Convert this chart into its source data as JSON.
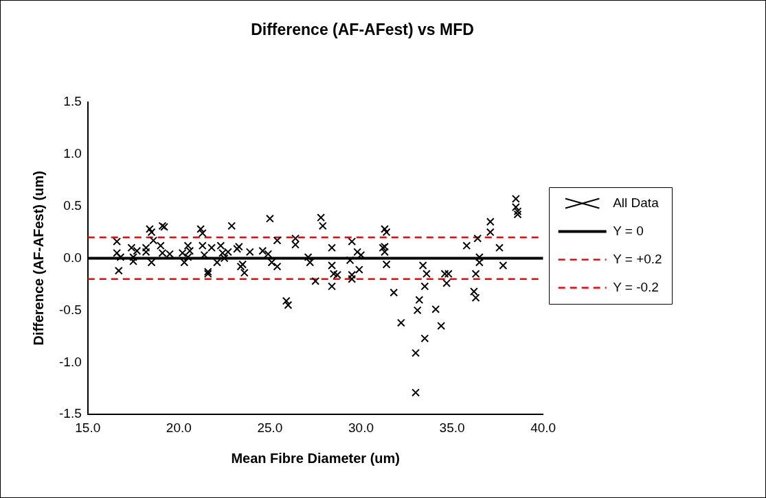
{
  "chart_data": {
    "type": "scatter",
    "title": "Difference (AF-AFest) vs MFD",
    "xlabel": "Mean Fibre Diameter (um)",
    "ylabel": "Difference (AF-AFest) (um)",
    "xlim": [
      15,
      40
    ],
    "xticks": [
      {
        "value": 15,
        "label": "15.0"
      },
      {
        "value": 20,
        "label": "20.0"
      },
      {
        "value": 25,
        "label": "25.0"
      },
      {
        "value": 30,
        "label": "30.0"
      },
      {
        "value": 35,
        "label": "35.0"
      },
      {
        "value": 40,
        "label": "40.0"
      }
    ],
    "ylim": [
      -1.5,
      1.5
    ],
    "yticks": [
      -1.5,
      {
        "value": -1,
        "label": "-1.0"
      },
      -0.5,
      {
        "value": 0,
        "label": "0.0"
      },
      0.5,
      {
        "value": 1,
        "label": "1.0"
      },
      1.5
    ],
    "grid": false,
    "legend": "right",
    "marker": "cross",
    "series": [
      {
        "name": "All Data",
        "color": "#000000",
        "x": [
          16.6,
          16.6,
          16.7,
          16.8,
          17.4,
          17.5,
          17.5,
          17.7,
          18.2,
          18.2,
          18.4,
          18.5,
          18.5,
          18.6,
          19.1,
          19.2,
          19.0,
          19.1,
          19.5,
          20.2,
          20.3,
          20.5,
          20.5,
          20.6,
          21.2,
          21.3,
          21.3,
          21.4,
          21.6,
          21.6,
          21.8,
          22.1,
          22.3,
          22.4,
          22.5,
          22.9,
          22.7,
          23.2,
          23.4,
          23.3,
          23.5,
          23.6,
          23.9,
          24.6,
          25.0,
          24.9,
          25.1,
          25.4,
          25.4,
          25.9,
          26.0,
          26.4,
          26.4,
          27.1,
          27.2,
          27.5,
          27.8,
          27.9,
          28.4,
          28.4,
          28.5,
          28.4,
          28.7,
          29.5,
          29.4,
          29.5,
          29.5,
          29.8,
          29.9,
          30.0,
          31.3,
          31.4,
          31.3,
          31.3,
          31.4,
          31.8,
          31.2,
          32.2,
          33.4,
          33.6,
          33.5,
          33.2,
          33.1,
          33.0,
          33.0,
          33.5,
          34.1,
          34.4,
          34.6,
          34.8,
          34.7,
          35.8,
          36.2,
          36.3,
          36.3,
          36.4,
          36.5,
          36.5,
          37.1,
          37.1,
          37.6,
          37.8,
          38.5,
          38.5,
          38.6,
          38.6
        ],
        "values": [
          0.16,
          0.05,
          -0.12,
          0.01,
          0.1,
          0.01,
          -0.03,
          0.07,
          0.1,
          0.06,
          0.28,
          0.25,
          -0.04,
          0.17,
          0.31,
          0.3,
          0.12,
          0.05,
          0.04,
          0.05,
          -0.04,
          0.12,
          0.01,
          0.07,
          0.28,
          0.24,
          0.12,
          0.03,
          -0.13,
          -0.15,
          0.1,
          -0.04,
          0.12,
          0.05,
          0.0,
          0.31,
          0.06,
          0.09,
          -0.08,
          0.11,
          -0.06,
          -0.14,
          0.06,
          0.07,
          0.38,
          0.04,
          -0.04,
          -0.08,
          0.17,
          -0.41,
          -0.45,
          0.19,
          0.13,
          0.01,
          -0.04,
          -0.22,
          0.39,
          0.31,
          0.1,
          -0.07,
          -0.15,
          -0.27,
          -0.16,
          0.16,
          -0.02,
          -0.16,
          -0.2,
          0.06,
          -0.11,
          0.03,
          0.28,
          0.25,
          0.11,
          0.06,
          -0.06,
          -0.33,
          0.1,
          -0.62,
          -0.07,
          -0.15,
          -0.27,
          -0.4,
          -0.5,
          -0.91,
          -1.29,
          -0.77,
          -0.49,
          -0.65,
          -0.15,
          -0.15,
          -0.24,
          0.12,
          -0.32,
          -0.38,
          -0.15,
          0.19,
          0.01,
          -0.04,
          0.35,
          0.25,
          0.1,
          -0.07,
          0.57,
          0.49,
          0.45,
          0.42
        ]
      },
      {
        "name": "Y = 0",
        "type": "line",
        "color": "#000000",
        "line_style": "solid",
        "marker": "none",
        "x": [
          15,
          40
        ],
        "values": [
          0,
          0
        ]
      },
      {
        "name": "Y = +0.2",
        "type": "line",
        "color": "#ff0000",
        "line_style": "dashed",
        "marker": "none",
        "x": [
          15,
          40
        ],
        "values": [
          0.2,
          0.2
        ]
      },
      {
        "name": "Y = -0.2",
        "type": "line",
        "color": "#ff0000",
        "line_style": "dashed",
        "marker": "none",
        "x": [
          15,
          40
        ],
        "values": [
          -0.2,
          -0.2
        ]
      }
    ]
  }
}
